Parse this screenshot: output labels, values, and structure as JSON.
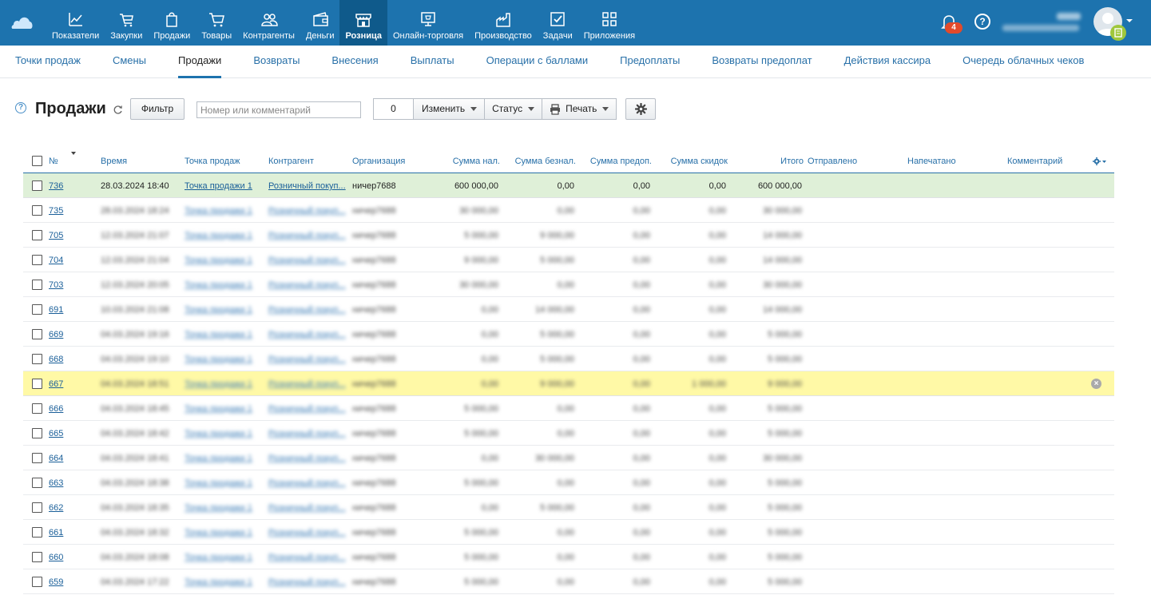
{
  "nav": [
    {
      "label": "Показатели",
      "icon": "chart-line-icon"
    },
    {
      "label": "Закупки",
      "icon": "cart-purchase-icon"
    },
    {
      "label": "Продажи",
      "icon": "shopping-bag-icon"
    },
    {
      "label": "Товары",
      "icon": "cart-icon"
    },
    {
      "label": "Контрагенты",
      "icon": "people-icon"
    },
    {
      "label": "Деньги",
      "icon": "wallet-icon"
    },
    {
      "label": "Розница",
      "icon": "store-icon",
      "active": true
    },
    {
      "label": "Онлайн-торговля",
      "icon": "online-store-icon"
    },
    {
      "label": "Производство",
      "icon": "factory-icon"
    },
    {
      "label": "Задачи",
      "icon": "checkbox-icon"
    },
    {
      "label": "Приложения",
      "icon": "apps-icon"
    }
  ],
  "notifications_count": "4",
  "subnav": [
    {
      "label": "Точки продаж"
    },
    {
      "label": "Смены"
    },
    {
      "label": "Продажи",
      "active": true
    },
    {
      "label": "Возвраты"
    },
    {
      "label": "Внесения"
    },
    {
      "label": "Выплаты"
    },
    {
      "label": "Операции с баллами"
    },
    {
      "label": "Предоплаты"
    },
    {
      "label": "Возвраты предоплат"
    },
    {
      "label": "Действия кассира"
    },
    {
      "label": "Очередь облачных чеков"
    }
  ],
  "toolbar": {
    "help": "?",
    "title": "Продажи",
    "filter_label": "Фильтр",
    "search_placeholder": "Номер или комментарий",
    "selected_count": "0",
    "change_label": "Изменить",
    "status_label": "Статус",
    "print_label": "Печать"
  },
  "columns": {
    "num": "№",
    "time": "Время",
    "point": "Точка продаж",
    "agent": "Контрагент",
    "org": "Организация",
    "cash": "Сумма нал.",
    "noncash": "Сумма безнал.",
    "prepaid": "Сумма предоп.",
    "discount": "Сумма скидок",
    "total": "Итого",
    "sent": "Отправлено",
    "printed": "Напечатано",
    "comment": "Комментарий"
  },
  "rows": [
    {
      "num": "736",
      "time": "28.03.2024 18:40",
      "point": "Точка продажи 1",
      "agent": "Розничный покуп...",
      "org": "ничер7688",
      "cash": "600 000,00",
      "noncash": "0,00",
      "prepaid": "0,00",
      "discount": "0,00",
      "total": "600 000,00",
      "style": "green",
      "blur": false
    },
    {
      "num": "735",
      "time": "28.03.2024 18:24",
      "point": "Точка продажи 1",
      "agent": "Розничный покуп...",
      "org": "ничер7688",
      "cash": "30 000,00",
      "noncash": "0,00",
      "prepaid": "0,00",
      "discount": "0,00",
      "total": "30 000,00",
      "style": "",
      "blur": true
    },
    {
      "num": "705",
      "time": "12.03.2024 21:07",
      "point": "Точка продажи 1",
      "agent": "Розничный покуп...",
      "org": "ничер7688",
      "cash": "5 000,00",
      "noncash": "9 000,00",
      "prepaid": "0,00",
      "discount": "0,00",
      "total": "14 000,00",
      "style": "",
      "blur": true
    },
    {
      "num": "704",
      "time": "12.03.2024 21:04",
      "point": "Точка продажи 1",
      "agent": "Розничный покуп...",
      "org": "ничер7688",
      "cash": "9 000,00",
      "noncash": "5 000,00",
      "prepaid": "0,00",
      "discount": "0,00",
      "total": "14 000,00",
      "style": "",
      "blur": true
    },
    {
      "num": "703",
      "time": "12.03.2024 20:05",
      "point": "Точка продажи 1",
      "agent": "Розничный покуп...",
      "org": "ничер7688",
      "cash": "30 000,00",
      "noncash": "0,00",
      "prepaid": "0,00",
      "discount": "0,00",
      "total": "30 000,00",
      "style": "",
      "blur": true
    },
    {
      "num": "691",
      "time": "10.03.2024 21:08",
      "point": "Точка продажи 1",
      "agent": "Розничный покуп...",
      "org": "ничер7688",
      "cash": "0,00",
      "noncash": "14 000,00",
      "prepaid": "0,00",
      "discount": "0,00",
      "total": "14 000,00",
      "style": "",
      "blur": true
    },
    {
      "num": "669",
      "time": "04.03.2024 19:16",
      "point": "Точка продажи 1",
      "agent": "Розничный покуп...",
      "org": "ничер7688",
      "cash": "0,00",
      "noncash": "5 000,00",
      "prepaid": "0,00",
      "discount": "0,00",
      "total": "5 000,00",
      "style": "",
      "blur": true
    },
    {
      "num": "668",
      "time": "04.03.2024 19:10",
      "point": "Точка продажи 1",
      "agent": "Розничный покуп...",
      "org": "ничер7688",
      "cash": "0,00",
      "noncash": "5 000,00",
      "prepaid": "0,00",
      "discount": "0,00",
      "total": "5 000,00",
      "style": "",
      "blur": true
    },
    {
      "num": "667",
      "time": "04.03.2024 18:51",
      "point": "Точка продажи 1",
      "agent": "Розничный покуп...",
      "org": "ничер7688",
      "cash": "0,00",
      "noncash": "9 000,00",
      "prepaid": "0,00",
      "discount": "1 000,00",
      "total": "9 000,00",
      "style": "yellow",
      "blur": true
    },
    {
      "num": "666",
      "time": "04.03.2024 18:45",
      "point": "Точка продажи 1",
      "agent": "Розничный покуп...",
      "org": "ничер7688",
      "cash": "5 000,00",
      "noncash": "0,00",
      "prepaid": "0,00",
      "discount": "0,00",
      "total": "5 000,00",
      "style": "",
      "blur": true
    },
    {
      "num": "665",
      "time": "04.03.2024 18:42",
      "point": "Точка продажи 1",
      "agent": "Розничный покуп...",
      "org": "ничер7688",
      "cash": "5 000,00",
      "noncash": "0,00",
      "prepaid": "0,00",
      "discount": "0,00",
      "total": "5 000,00",
      "style": "",
      "blur": true
    },
    {
      "num": "664",
      "time": "04.03.2024 18:41",
      "point": "Точка продажи 1",
      "agent": "Розничный покуп...",
      "org": "ничер7688",
      "cash": "0,00",
      "noncash": "30 000,00",
      "prepaid": "0,00",
      "discount": "0,00",
      "total": "30 000,00",
      "style": "",
      "blur": true
    },
    {
      "num": "663",
      "time": "04.03.2024 18:38",
      "point": "Точка продажи 1",
      "agent": "Розничный покуп...",
      "org": "ничер7688",
      "cash": "5 000,00",
      "noncash": "0,00",
      "prepaid": "0,00",
      "discount": "0,00",
      "total": "5 000,00",
      "style": "",
      "blur": true
    },
    {
      "num": "662",
      "time": "04.03.2024 18:35",
      "point": "Точка продажи 1",
      "agent": "Розничный покуп...",
      "org": "ничер7688",
      "cash": "0,00",
      "noncash": "5 000,00",
      "prepaid": "0,00",
      "discount": "0,00",
      "total": "5 000,00",
      "style": "",
      "blur": true
    },
    {
      "num": "661",
      "time": "04.03.2024 18:32",
      "point": "Точка продажи 1",
      "agent": "Розничный покуп...",
      "org": "ничер7688",
      "cash": "5 000,00",
      "noncash": "0,00",
      "prepaid": "0,00",
      "discount": "0,00",
      "total": "5 000,00",
      "style": "",
      "blur": true
    },
    {
      "num": "660",
      "time": "04.03.2024 18:08",
      "point": "Точка продажи 1",
      "agent": "Розничный покуп...",
      "org": "ничер7688",
      "cash": "5 000,00",
      "noncash": "0,00",
      "prepaid": "0,00",
      "discount": "0,00",
      "total": "5 000,00",
      "style": "",
      "blur": true
    },
    {
      "num": "659",
      "time": "04.03.2024 17:22",
      "point": "Точка продажи 1",
      "agent": "Розничный покуп...",
      "org": "ничер7688",
      "cash": "5 000,00",
      "noncash": "0,00",
      "prepaid": "0,00",
      "discount": "0,00",
      "total": "5 000,00",
      "style": "",
      "blur": true
    }
  ],
  "colors": {
    "topbar": "#1d73ae",
    "active_nav": "#0f5a8b",
    "link": "#2870a8",
    "row_green": "#dff0d8",
    "row_yellow": "#fff9a6",
    "badge": "#e24a2b"
  }
}
